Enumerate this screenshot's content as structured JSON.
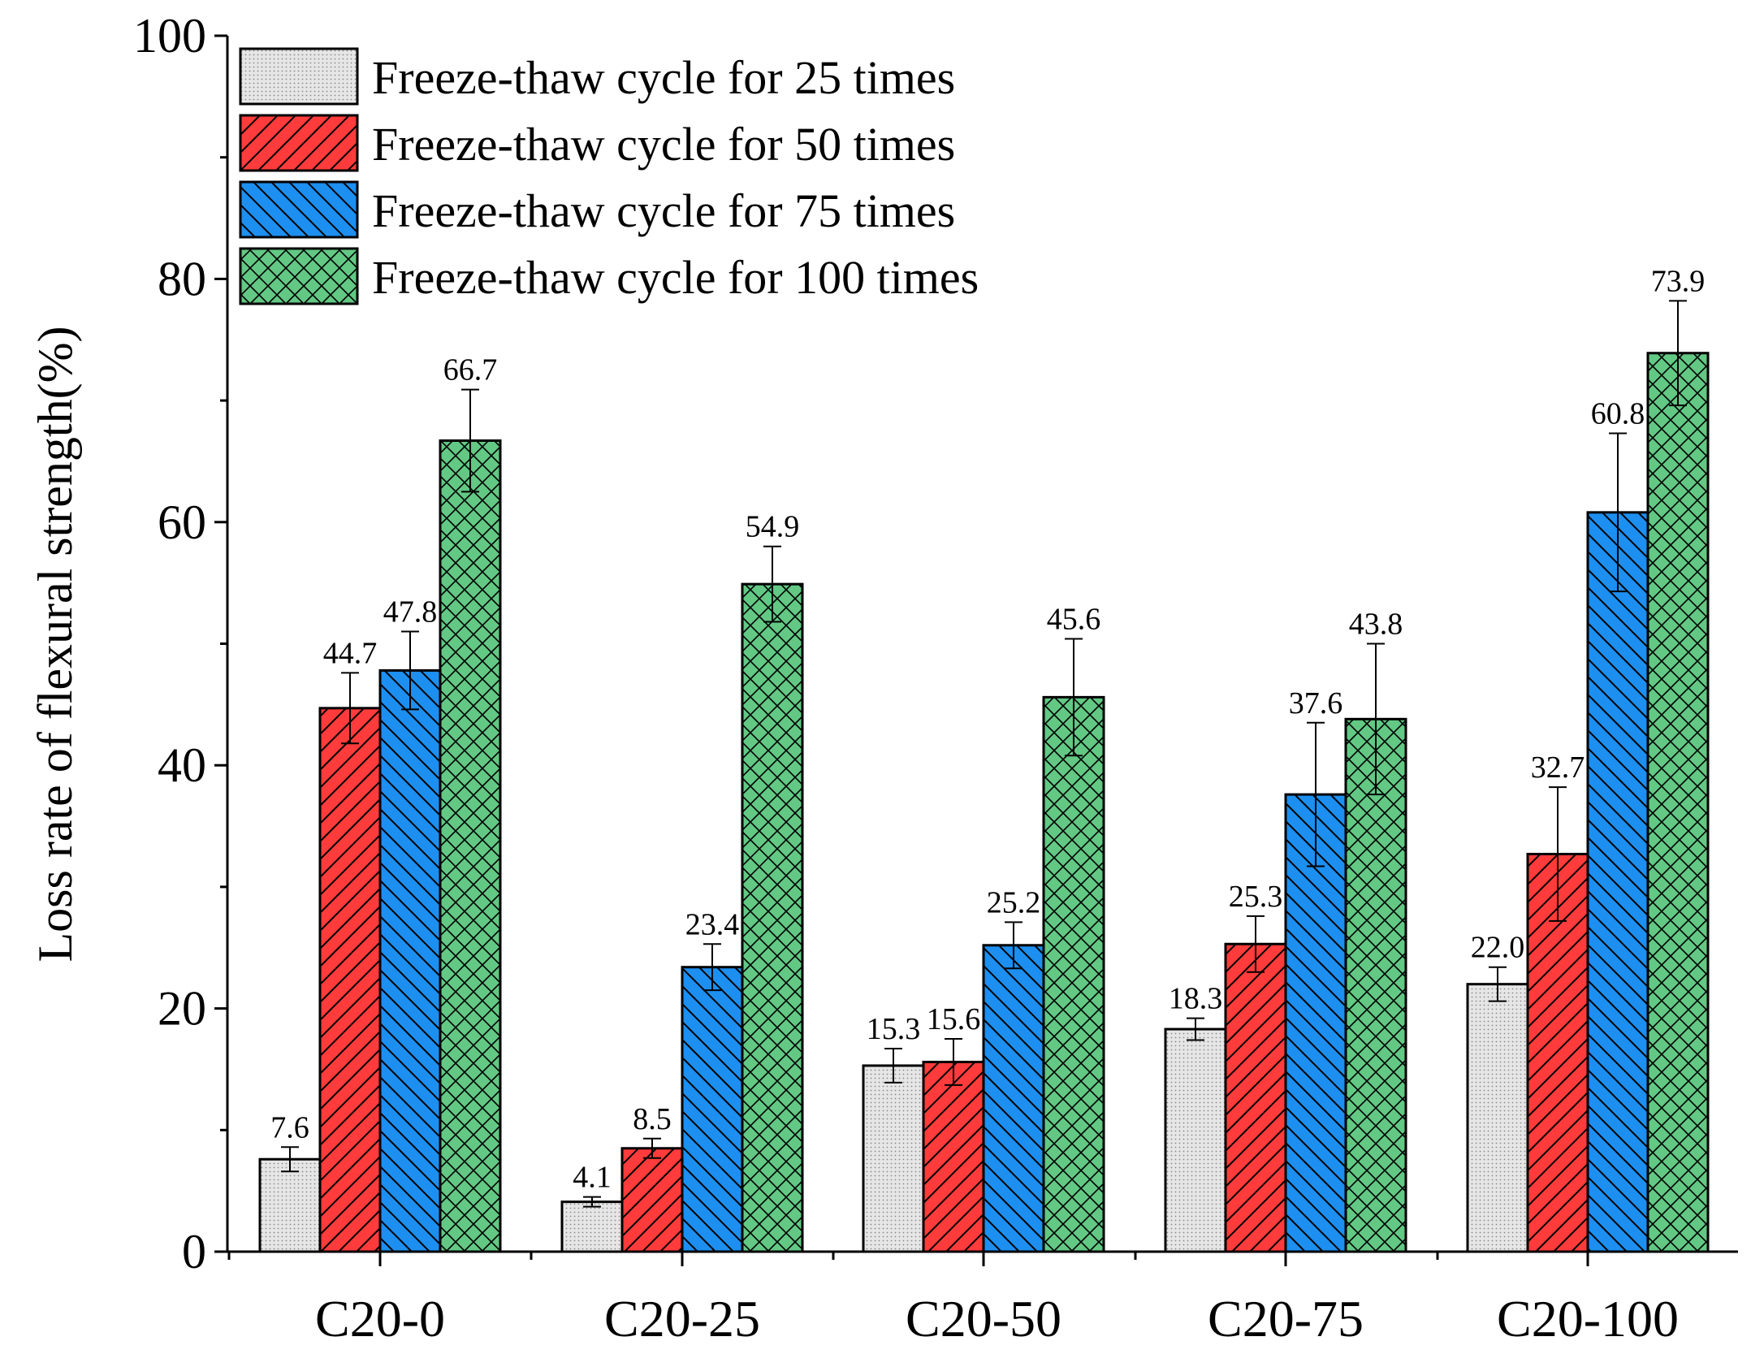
{
  "chart_data": {
    "type": "bar",
    "title": "",
    "xlabel": "",
    "ylabel": "Loss rate of flexural strength(%)",
    "ylim": [
      0,
      100
    ],
    "yticks": [
      0,
      20,
      40,
      60,
      80,
      100
    ],
    "categories": [
      "C20-0",
      "C20-25",
      "C20-50",
      "C20-75",
      "C20-100"
    ],
    "legend_position": "top-left",
    "series": [
      {
        "name": "Freeze-thaw cycle for 25 times",
        "pattern": "dots",
        "color": "#e6e6e6",
        "values": [
          7.6,
          4.1,
          15.3,
          18.3,
          22.0
        ],
        "labels": [
          "7.6",
          "4.1",
          "15.3",
          "18.3",
          "22.0"
        ],
        "errors": [
          1.0,
          0.4,
          1.4,
          0.9,
          1.4
        ]
      },
      {
        "name": "Freeze-thaw cycle for 50 times",
        "pattern": "forward-diagonal",
        "color": "#ff3b3b",
        "values": [
          44.7,
          8.5,
          15.6,
          25.3,
          32.7
        ],
        "labels": [
          "44.7",
          "8.5",
          "15.6",
          "25.3",
          "32.7"
        ],
        "errors": [
          2.9,
          0.8,
          1.9,
          2.3,
          5.5
        ]
      },
      {
        "name": "Freeze-thaw cycle for 75 times",
        "pattern": "back-diagonal",
        "color": "#1c8ff0",
        "values": [
          47.8,
          23.4,
          25.2,
          37.6,
          60.8
        ],
        "labels": [
          "47.8",
          "23.4",
          "25.2",
          "37.6",
          "60.8"
        ],
        "errors": [
          3.2,
          1.9,
          1.9,
          5.9,
          6.5
        ]
      },
      {
        "name": "Freeze-thaw cycle for 100 times",
        "pattern": "crosshatch",
        "color": "#62c884",
        "values": [
          66.7,
          54.9,
          45.6,
          43.8,
          73.9
        ],
        "labels": [
          "66.7",
          "54.9",
          "45.6",
          "43.8",
          "73.9"
        ],
        "errors": [
          4.2,
          3.1,
          4.8,
          6.2,
          4.3
        ]
      }
    ]
  }
}
